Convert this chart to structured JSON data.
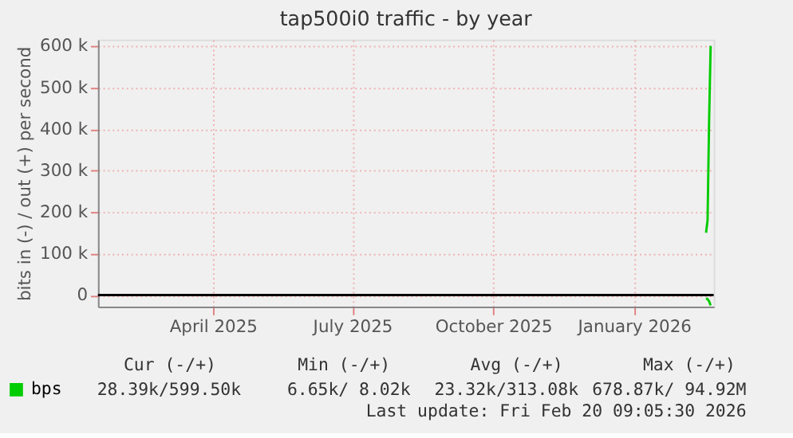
{
  "chart_data": {
    "type": "line",
    "title": "tap500i0 traffic - by year",
    "ylabel": "bits in (-) / out (+) per second",
    "xlim": [
      "2025-01-16",
      "2026-02-22"
    ],
    "xticks": [
      {
        "value": "2025-04-01",
        "label": "April 2025"
      },
      {
        "value": "2025-07-01",
        "label": "July 2025"
      },
      {
        "value": "2025-10-01",
        "label": "October 2025"
      },
      {
        "value": "2026-01-01",
        "label": "January 2026"
      }
    ],
    "ylim": [
      -28000,
      615000
    ],
    "yticks": [
      {
        "value": 0,
        "label": "0"
      },
      {
        "value": 100000,
        "label": "100 k"
      },
      {
        "value": 200000,
        "label": "200 k"
      },
      {
        "value": 300000,
        "label": "300 k"
      },
      {
        "value": 400000,
        "label": "400 k"
      },
      {
        "value": 500000,
        "label": "500 k"
      },
      {
        "value": 600000,
        "label": "600 k"
      }
    ],
    "series": [
      {
        "name": "bps",
        "color": "#00cc00",
        "x": [
          "2026-02-17",
          "2026-02-18",
          "2026-02-19",
          "2026-02-20"
        ],
        "values": [
          150000,
          180000,
          420000,
          600000
        ]
      },
      {
        "color": "#00cc00",
        "x": [
          "2026-02-17",
          "2026-02-18",
          "2026-02-19",
          "2026-02-20"
        ],
        "values": [
          -8000,
          -10000,
          -15000,
          -25000
        ]
      }
    ],
    "ref_lines": [
      {
        "axis": "y",
        "value": 0,
        "color": "#000000"
      }
    ],
    "annotations": [
      "Cur (-/+)",
      "Min (-/+)",
      "Avg (-/+)",
      "Max (-/+)",
      "28.39k/599.50k",
      "6.65k/   8.02k",
      "23.32k/313.08k",
      "678.87k/  94.92M",
      "Last update: Fri Feb 20 09:05:30 2026"
    ],
    "grid": true,
    "legend": "bottom left"
  }
}
